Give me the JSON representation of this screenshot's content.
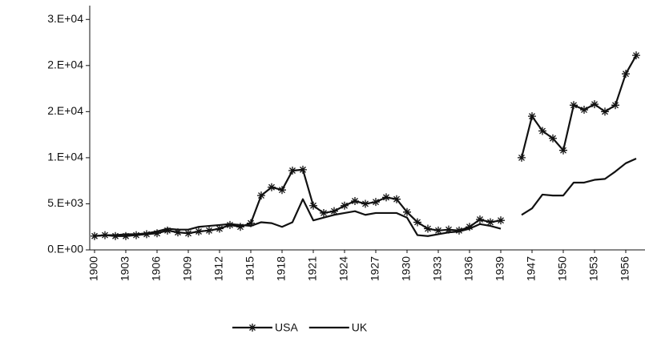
{
  "chart_data": {
    "type": "line",
    "categories": [
      "1900",
      "1901",
      "1902",
      "1903",
      "1904",
      "1905",
      "1906",
      "1907",
      "1908",
      "1909",
      "1910",
      "1911",
      "1912",
      "1913",
      "1914",
      "1915",
      "1916",
      "1917",
      "1918",
      "1919",
      "1920",
      "1921",
      "1922",
      "1923",
      "1924",
      "1925",
      "1926",
      "1927",
      "1928",
      "1929",
      "1930",
      "1931",
      "1932",
      "1933",
      "1934",
      "1935",
      "1936",
      "1937",
      "1938",
      "1939",
      null,
      "1946",
      "1947",
      "1948",
      "1949",
      "1950",
      "1951",
      "1952",
      "1953",
      "1954",
      "1955",
      "1956",
      "1957"
    ],
    "label_interval": 3,
    "series": [
      {
        "name": "USA",
        "color": "#111111",
        "marker": "asterisk",
        "values": [
          1500,
          1600,
          1500,
          1500,
          1600,
          1700,
          1800,
          2100,
          1900,
          1800,
          2000,
          2100,
          2300,
          2700,
          2500,
          2900,
          5900,
          6800,
          6500,
          8600,
          8700,
          4800,
          4000,
          4200,
          4800,
          5300,
          5000,
          5200,
          5700,
          5500,
          4100,
          3000,
          2300,
          2100,
          2200,
          2100,
          2500,
          3300,
          3000,
          3200,
          null,
          10000,
          14500,
          12900,
          12100,
          10800,
          15700,
          15200,
          15800,
          15000,
          15700,
          19100,
          21100
        ]
      },
      {
        "name": "UK",
        "color": "#111111",
        "marker": "none",
        "values": [
          1500,
          1600,
          1600,
          1700,
          1700,
          1800,
          2000,
          2300,
          2200,
          2200,
          2500,
          2600,
          2700,
          2800,
          2700,
          2600,
          3000,
          2900,
          2500,
          3000,
          5500,
          3200,
          3500,
          3800,
          4000,
          4200,
          3800,
          4000,
          4000,
          4000,
          3500,
          1600,
          1500,
          1700,
          1900,
          2000,
          2300,
          2800,
          2600,
          2300,
          null,
          3800,
          4500,
          6000,
          5900,
          5900,
          7300,
          7300,
          7600,
          7700,
          8500,
          9400,
          9900
        ]
      }
    ],
    "ylim": [
      0,
      26500
    ],
    "yticks": [
      {
        "value": 0,
        "label": "0.E+00"
      },
      {
        "value": 5000,
        "label": "5.E+03"
      },
      {
        "value": 10000,
        "label": "1.E+04"
      },
      {
        "value": 15000,
        "label": "2.E+04"
      },
      {
        "value": 20000,
        "label": "2.E+04"
      },
      {
        "value": 25000,
        "label": "3.E+04"
      }
    ],
    "grid": false,
    "legend": "bottom"
  }
}
